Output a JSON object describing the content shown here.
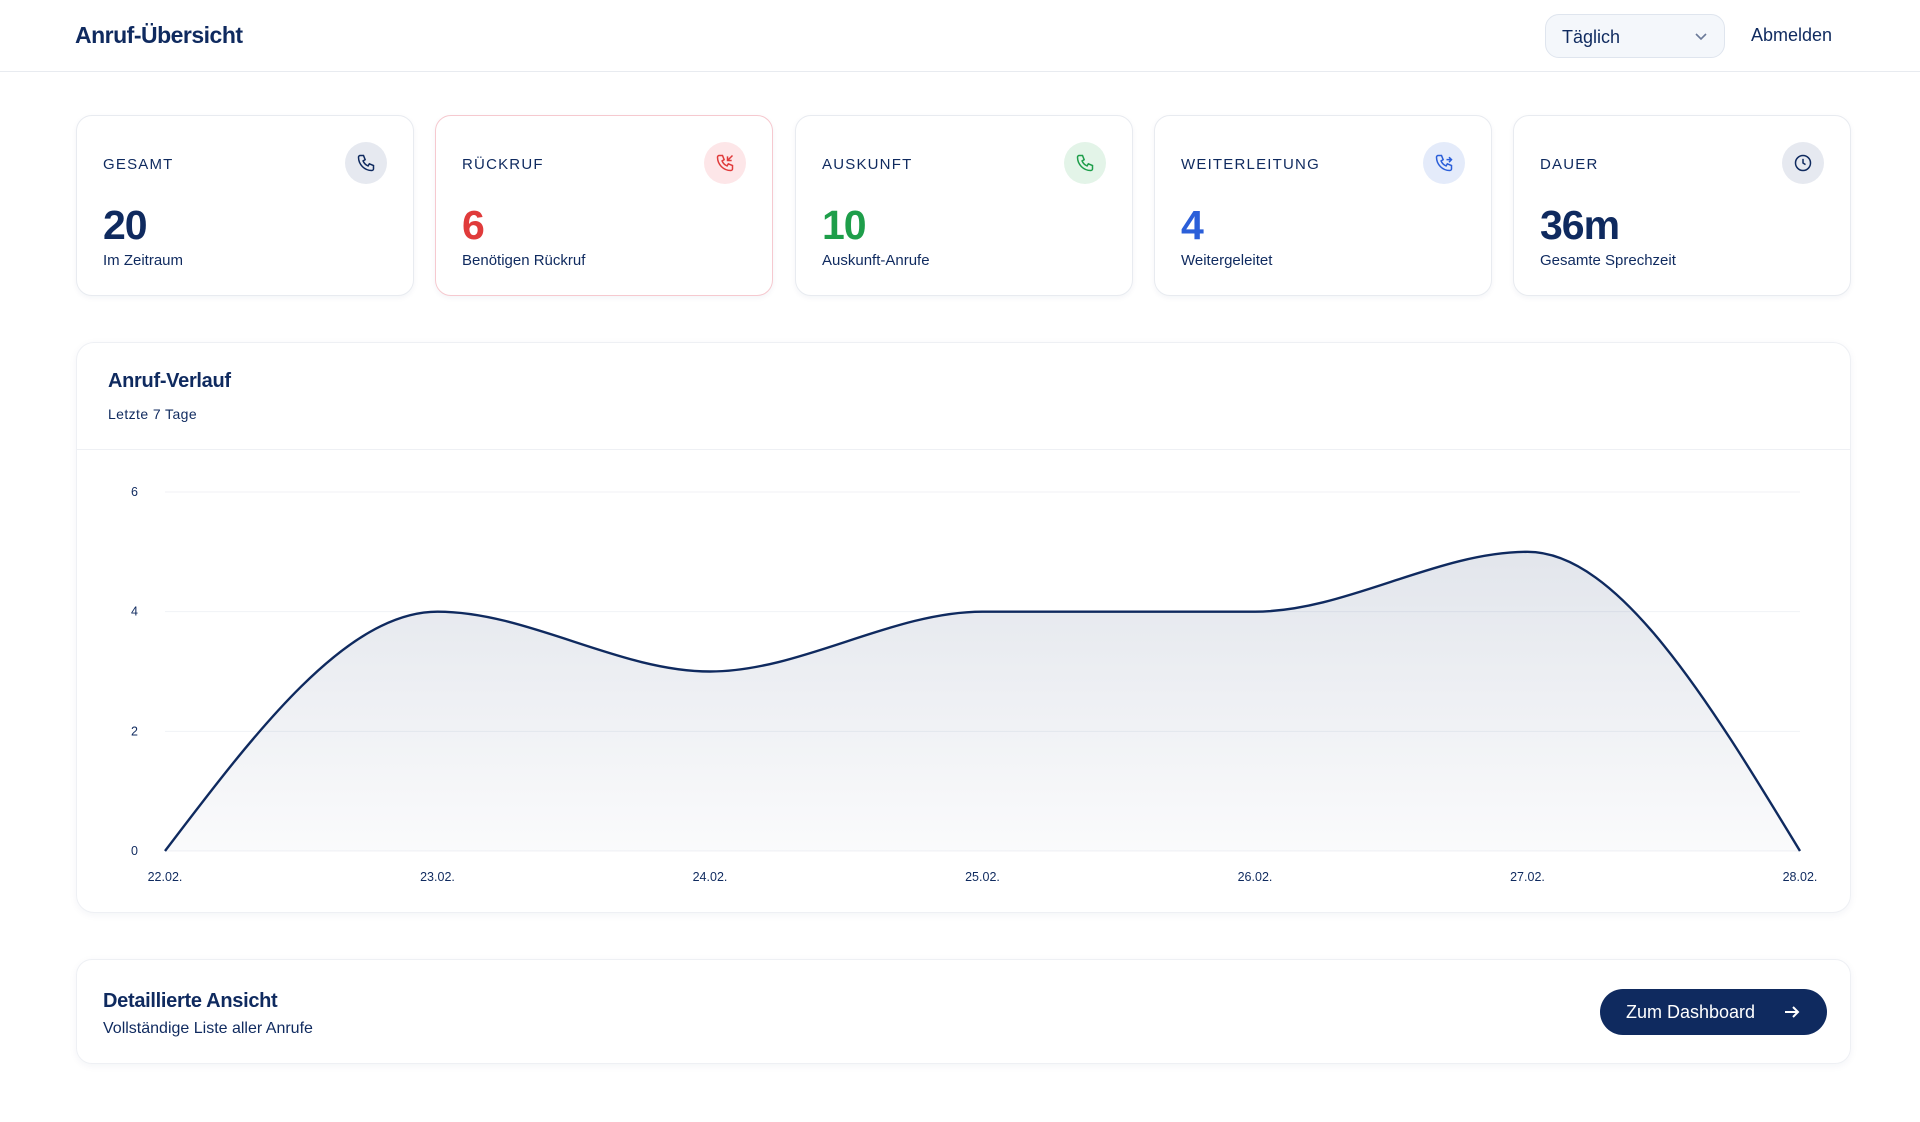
{
  "header": {
    "title": "Anruf-Übersicht",
    "select": "Täglich",
    "logout": "Abmelden"
  },
  "cards": [
    {
      "label": "GESAMT",
      "value": 20,
      "sub": "Im Zeitraum"
    },
    {
      "label": "RÜCKRUF",
      "value": 6,
      "sub": "Benötigen Rückruf"
    },
    {
      "label": "AUSKUNFT",
      "value": 10,
      "sub": "Auskunft-Anrufe"
    },
    {
      "label": "WEITERLEITUNG",
      "value": 4,
      "sub": "Weitergeleitet"
    },
    {
      "label": "DAUER",
      "value": "36m",
      "sub": "Gesamte Sprechzeit"
    }
  ],
  "chart_data": {
    "type": "line",
    "title": "Anruf-Verlauf",
    "subtitle": "Letzte 7 Tage",
    "categories": [
      "22.02.",
      "23.02.",
      "24.02.",
      "25.02.",
      "26.02.",
      "27.02.",
      "28.02."
    ],
    "values": [
      0,
      4,
      3,
      4,
      4,
      5,
      0
    ],
    "color": "#0f2a5f",
    "ylim": [
      0,
      6
    ],
    "yticks": [
      0,
      2,
      4,
      6
    ],
    "grid": true
  },
  "footer": {
    "title": "Detaillierte Ansicht",
    "subtitle": "Vollständige Liste aller Anrufe",
    "button": "Zum Dashboard"
  }
}
